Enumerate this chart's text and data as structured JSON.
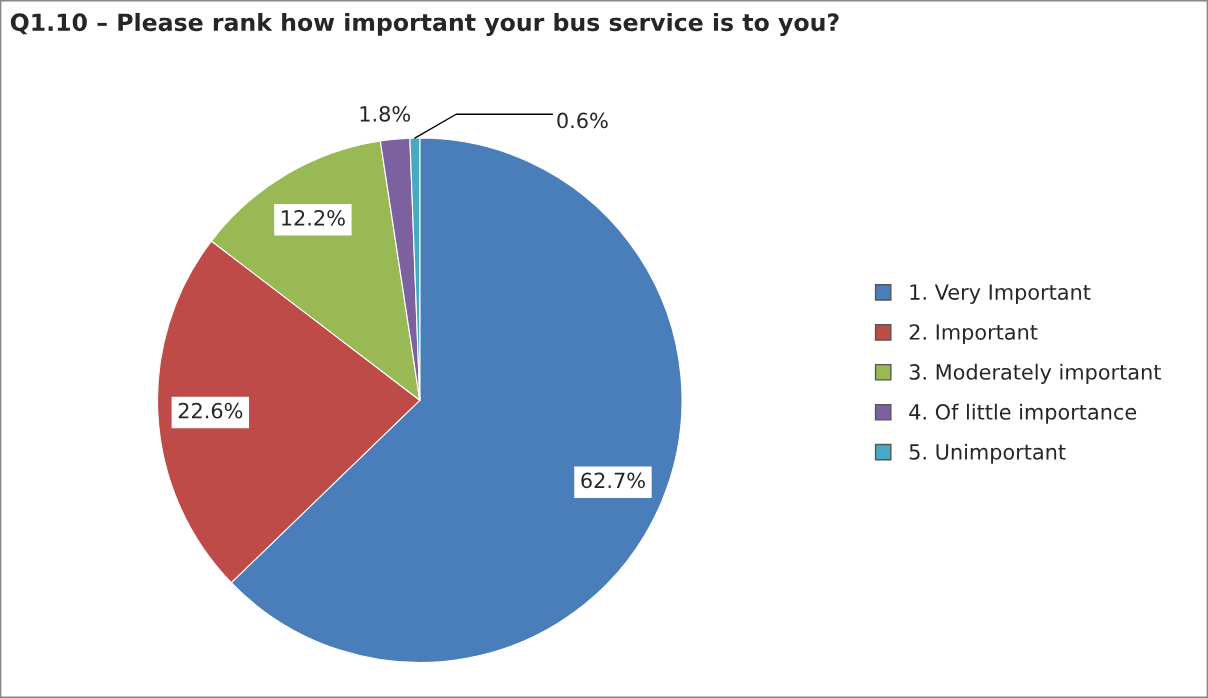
{
  "chart_data": {
    "type": "pie",
    "title": "Q1.10 – Please rank how important your bus service is to you?",
    "categories": [
      "1. Very Important",
      "2. Important",
      "3. Moderately important",
      "4. Of little importance",
      "5. Unimportant"
    ],
    "values": [
      62.7,
      22.6,
      12.2,
      1.8,
      0.6
    ],
    "value_labels": [
      "62.7%",
      "22.6%",
      "12.2%",
      "1.8%",
      "0.6%"
    ],
    "colors": [
      "#4a7ebb",
      "#be4b48",
      "#98b954",
      "#7d60a0",
      "#46aac5"
    ],
    "legend": "right"
  }
}
